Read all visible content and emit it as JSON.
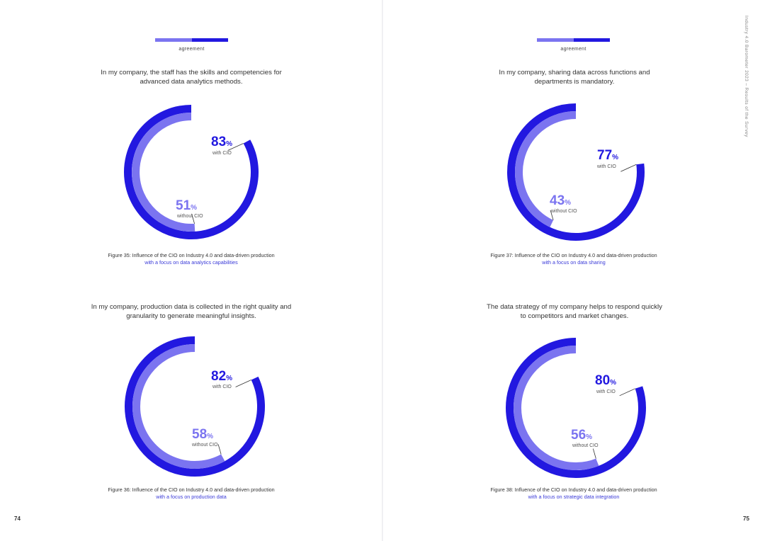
{
  "colors": {
    "with_cio": "#2218e0",
    "without_cio": "#7b74f0"
  },
  "legend": {
    "label": "agreement"
  },
  "side_text": "Industry 4.0 Barometer 2023 – Results of the Survey",
  "pages": {
    "left_number": "74",
    "right_number": "75"
  },
  "figures": [
    {
      "question": "In my company, the staff has the skills and competencies for advanced data analytics methods.",
      "caption_prefix": "Figure 35: Influence of the CIO on Industry 4.0 and data-driven production ",
      "caption_highlight": "with a focus on data analytics capabilities",
      "with_value": "83",
      "without_value": "51",
      "percent_sign": "%",
      "with_label": "with CIO",
      "without_label": "without CIO"
    },
    {
      "question": "In my company, sharing data across functions and departments is mandatory.",
      "caption_prefix": "Figure 37: Influence of the CIO on Industry 4.0 and data-driven production ",
      "caption_highlight": "with a focus on data sharing",
      "with_value": "77",
      "without_value": "43",
      "percent_sign": "%",
      "with_label": "with CIO",
      "without_label": "without CIO"
    },
    {
      "question": "In my company, production data is collected in the right quality and granularity to generate meaningful insights.",
      "caption_prefix": "Figure 36: Influence of the CIO on Industry 4.0 and data-driven production ",
      "caption_highlight": "with a focus on production data",
      "with_value": "82",
      "without_value": "58",
      "percent_sign": "%",
      "with_label": "with CIO",
      "without_label": "without CIO"
    },
    {
      "question": "The data strategy of my company helps to respond quickly to competitors and market changes.",
      "caption_prefix": "Figure 38: Influence of the CIO on Industry 4.0 and data-driven production ",
      "caption_highlight": "with a focus on strategic data integration",
      "with_value": "80",
      "without_value": "56",
      "percent_sign": "%",
      "with_label": "with CIO",
      "without_label": "without CIO"
    }
  ],
  "chart_data": [
    {
      "type": "pie",
      "series": [
        {
          "name": "with CIO",
          "values": [
            83
          ]
        },
        {
          "name": "without CIO",
          "values": [
            51
          ]
        }
      ]
    },
    {
      "type": "pie",
      "series": [
        {
          "name": "with CIO",
          "values": [
            77
          ]
        },
        {
          "name": "without CIO",
          "values": [
            43
          ]
        }
      ]
    },
    {
      "type": "pie",
      "series": [
        {
          "name": "with CIO",
          "values": [
            82
          ]
        },
        {
          "name": "without CIO",
          "values": [
            58
          ]
        }
      ]
    },
    {
      "type": "pie",
      "series": [
        {
          "name": "with CIO",
          "values": [
            80
          ]
        },
        {
          "name": "without CIO",
          "values": [
            56
          ]
        }
      ]
    }
  ]
}
